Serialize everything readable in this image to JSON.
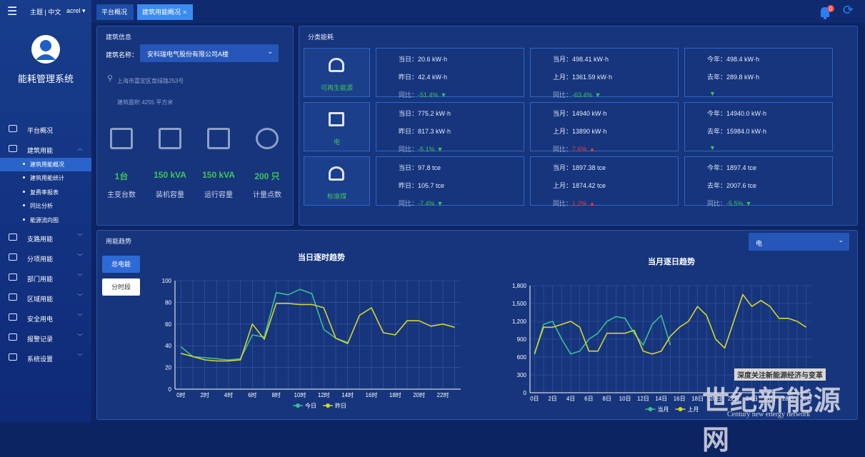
{
  "sidebar": {
    "top": [
      "主题 | 中文",
      "acrel"
    ],
    "brand": "能耗管理系统",
    "menu": [
      {
        "label": "平台概况"
      },
      {
        "label": "建筑用能",
        "children": [
          "建筑用能概况",
          "建筑用能统计",
          "复费率报表",
          "同比分析",
          "能源流向图"
        ]
      },
      {
        "label": "支路用能"
      },
      {
        "label": "分项用能"
      },
      {
        "label": "部门用能"
      },
      {
        "label": "区域用能"
      },
      {
        "label": "安全用电"
      },
      {
        "label": "报警记录"
      },
      {
        "label": "系统设置"
      }
    ]
  },
  "tabs": [
    "平台概况",
    "建筑用能概况"
  ],
  "badge": "0",
  "building": {
    "title": "建筑信息",
    "name_label": "建筑名称：",
    "name": "安科瑞电气股份有限公司A楼",
    "address": "上海市嘉定区育绿路253号",
    "area": "建筑面积 4255 平方米",
    "stats": [
      {
        "value": "1台",
        "label": "主变台数"
      },
      {
        "value": "150 kVA",
        "label": "装机容量"
      },
      {
        "value": "150 kVA",
        "label": "运行容量"
      },
      {
        "value": "200 只",
        "label": "计量点数"
      }
    ]
  },
  "energy": {
    "title": "分类能耗",
    "rows": [
      {
        "name": "可再生能源",
        "boxes": [
          {
            "lines": [
              "当日：20.6 kW·h",
              "昨日：42.4 kW·h"
            ],
            "ratio_label": "同比：",
            "ratio": "-51.4%",
            "trend": "down"
          },
          {
            "lines": [
              "当月：498.41 kW·h",
              "上月：1361.59 kW·h"
            ],
            "ratio_label": "同比：",
            "ratio": "-63.4%",
            "trend": "down"
          },
          {
            "lines": [
              "今年：498.4 kW·h",
              "去年：289.8 kW·h"
            ],
            "trend": "down"
          }
        ]
      },
      {
        "name": "电",
        "boxes": [
          {
            "lines": [
              "当日：775.2 kW·h",
              "昨日：817.3 kW·h"
            ],
            "ratio_label": "同比：",
            "ratio": "-5.1%",
            "trend": "down"
          },
          {
            "lines": [
              "当月：14940 kW·h",
              "上月：13890 kW·h"
            ],
            "ratio_label": "同比：",
            "ratio": "7.6%",
            "trend": "up"
          },
          {
            "lines": [
              "今年：14940.0 kW·h",
              "去年：15984.0 kW·h"
            ],
            "trend": "down"
          }
        ]
      },
      {
        "name": "标准煤",
        "boxes": [
          {
            "lines": [
              "当日：97.8 tce",
              "昨日：105.7 tce"
            ],
            "ratio_label": "同比：",
            "ratio": "-7.4%",
            "trend": "down"
          },
          {
            "lines": [
              "当月：1897.38 tce",
              "上月：1874.42 tce"
            ],
            "ratio_label": "同比：",
            "ratio": "1.2%",
            "trend": "up"
          },
          {
            "lines": [
              "今年：1897.4 tce",
              "去年：2007.6 tce"
            ],
            "ratio_label": "同比：",
            "ratio": "-5.5%",
            "trend": "down"
          }
        ]
      }
    ]
  },
  "trend": {
    "title": "用能趋势",
    "select": "电",
    "buttons": [
      "总电能",
      "分时段"
    ]
  },
  "chart_data": [
    {
      "type": "line",
      "title": "当日逐时趋势",
      "categories": [
        "0时",
        null,
        "2时",
        null,
        "4时",
        null,
        "6时",
        null,
        "8时",
        null,
        "10时",
        null,
        "12时",
        null,
        "14时",
        null,
        "16时",
        null,
        "18时",
        null,
        "20时",
        null,
        "22时",
        null
      ],
      "series": [
        {
          "name": "今日",
          "color": "#3dbf94",
          "values": [
            39,
            30,
            29,
            28,
            27,
            28,
            50,
            48,
            89,
            87,
            92,
            88,
            55,
            47,
            43,
            null,
            null,
            null,
            null,
            null,
            null,
            null,
            null,
            null
          ]
        },
        {
          "name": "昨日",
          "color": "#d6d62e",
          "values": [
            33,
            30,
            27,
            26,
            26,
            27,
            60,
            46,
            79,
            79,
            78,
            78,
            75,
            47,
            42,
            68,
            75,
            52,
            50,
            63,
            63,
            58,
            60,
            57
          ]
        }
      ],
      "ylim": [
        0,
        100
      ],
      "yticks": [
        0,
        20,
        40,
        60,
        80,
        100
      ],
      "grid": true
    },
    {
      "type": "line",
      "title": "当月逐日趋势",
      "categories": [
        "0日",
        null,
        "2日",
        null,
        "4日",
        null,
        "6日",
        null,
        "8日",
        null,
        "10日",
        null,
        "12日",
        null,
        "14日",
        null,
        "16日",
        null,
        "18日",
        null,
        "20日",
        null,
        "22日",
        null,
        "24日",
        null,
        "26日",
        null,
        "28日",
        null,
        "30日"
      ],
      "series": [
        {
          "name": "当月",
          "color": "#3dbf94",
          "values": [
            640,
            1150,
            1200,
            900,
            650,
            700,
            900,
            1000,
            1200,
            1280,
            1250,
            1000,
            800,
            1150,
            1300,
            800,
            null,
            null,
            null,
            null,
            null,
            null,
            null,
            null,
            null,
            null,
            null,
            null,
            null,
            null,
            null
          ]
        },
        {
          "name": "上月",
          "color": "#d6d62e",
          "values": [
            660,
            1100,
            1100,
            1150,
            1200,
            1100,
            700,
            700,
            1000,
            1000,
            1000,
            1050,
            700,
            650,
            700,
            950,
            1100,
            1200,
            1450,
            1300,
            900,
            750,
            1200,
            1650,
            1450,
            1550,
            1450,
            1250,
            1250,
            1200,
            1100
          ]
        }
      ],
      "ylim": [
        0,
        1800
      ],
      "yticks": [
        0,
        300,
        600,
        900,
        {
          "value": 1200,
          "label": "1,200"
        },
        {
          "value": 1500,
          "label": "1,500"
        },
        {
          "value": 1800,
          "label": "1,800"
        }
      ],
      "grid": true
    }
  ],
  "watermark": {
    "slogan": "深度关注新能源经济与变革",
    "name": "世纪新能源网",
    "english": "Century new energy network"
  }
}
